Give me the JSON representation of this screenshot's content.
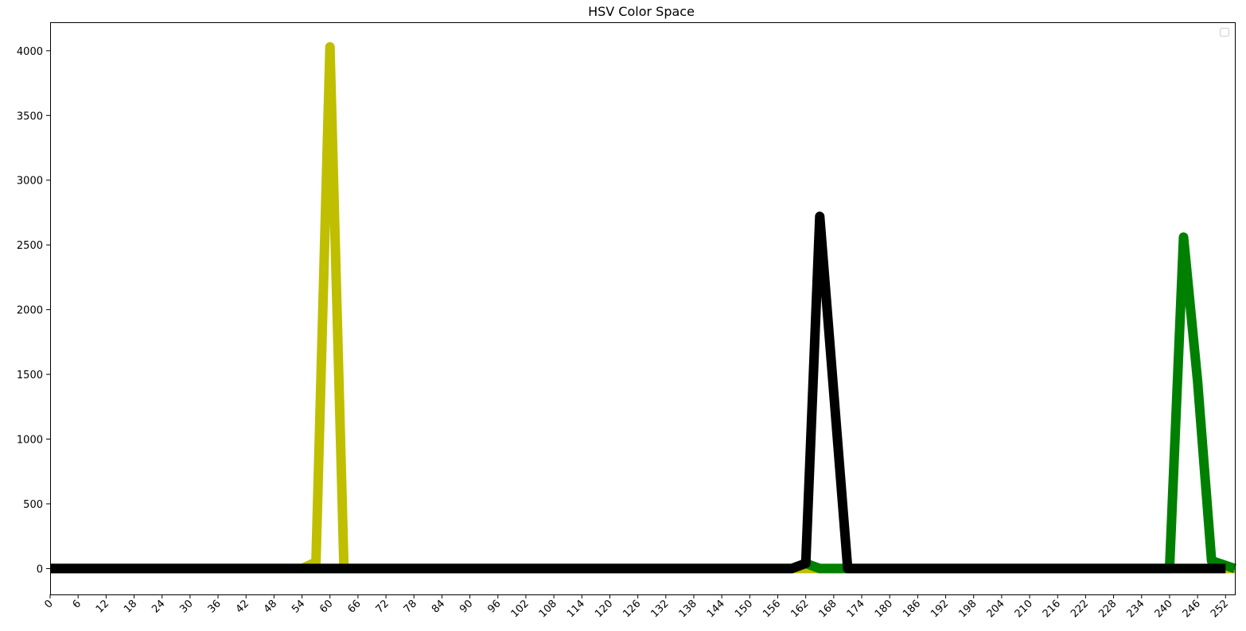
{
  "chart_data": {
    "type": "line",
    "title": "HSV Color Space",
    "xlabel": "",
    "ylabel": "",
    "xlim": [
      0,
      254
    ],
    "ylim": [
      -200,
      4220
    ],
    "x_ticks": [
      0,
      6,
      12,
      18,
      24,
      30,
      36,
      42,
      48,
      54,
      60,
      66,
      72,
      78,
      84,
      90,
      96,
      102,
      108,
      114,
      120,
      126,
      132,
      138,
      144,
      150,
      156,
      162,
      168,
      174,
      180,
      186,
      192,
      198,
      204,
      210,
      216,
      222,
      228,
      234,
      240,
      246,
      252
    ],
    "y_ticks": [
      0,
      500,
      1000,
      1500,
      2000,
      2500,
      3000,
      3500,
      4000
    ],
    "grid": false,
    "legend": {
      "placement": "top-right",
      "entries": []
    },
    "series": [
      {
        "color": "#bfbf00",
        "points": [
          [
            0,
            0
          ],
          [
            54,
            0
          ],
          [
            57,
            50
          ],
          [
            60,
            4030
          ],
          [
            63,
            0
          ],
          [
            254,
            0
          ]
        ]
      },
      {
        "color": "#008000",
        "points": [
          [
            0,
            0
          ],
          [
            159,
            0
          ],
          [
            162,
            40
          ],
          [
            165,
            0
          ],
          [
            171,
            0
          ],
          [
            240,
            0
          ],
          [
            243,
            2560
          ],
          [
            246,
            1450
          ],
          [
            249,
            60
          ],
          [
            254,
            0
          ]
        ]
      },
      {
        "color": "#000000",
        "points": [
          [
            0,
            0
          ],
          [
            159,
            0
          ],
          [
            162,
            40
          ],
          [
            165,
            2720
          ],
          [
            171,
            0
          ],
          [
            252,
            0
          ]
        ]
      }
    ]
  }
}
